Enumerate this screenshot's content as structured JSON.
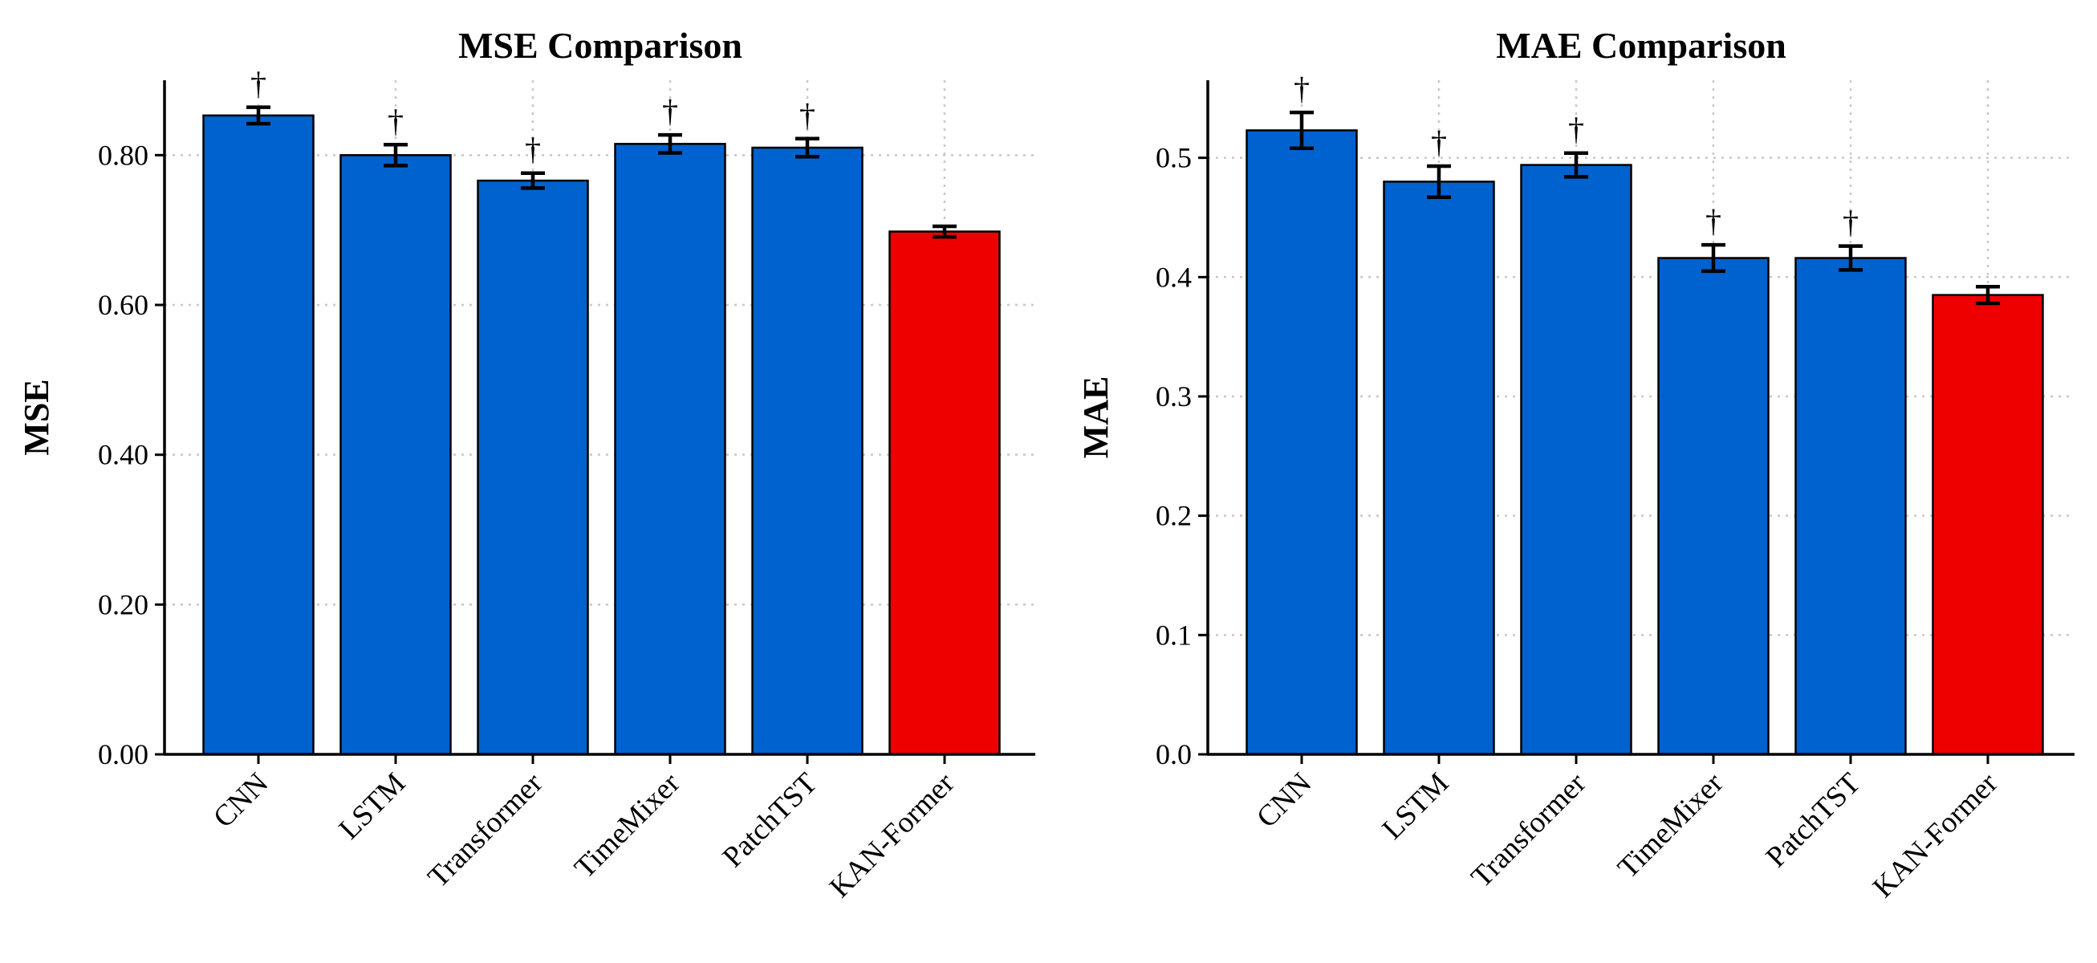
{
  "figure": {
    "background": "#ffffff"
  },
  "chart_data": [
    {
      "type": "bar",
      "title": "MSE Comparison",
      "xlabel": "",
      "ylabel": "MSE",
      "ylim": [
        0,
        0.9
      ],
      "yticks": [
        0.0,
        0.2,
        0.4,
        0.6,
        0.8
      ],
      "ytick_labels": [
        "0.00",
        "0.20",
        "0.40",
        "0.60",
        "0.80"
      ],
      "grid": true,
      "categories": [
        "CNN",
        "LSTM",
        "Transformer",
        "TimeMixer",
        "PatchTST",
        "KAN-Former"
      ],
      "values": [
        0.853,
        0.8,
        0.766,
        0.815,
        0.81,
        0.698
      ],
      "errors": [
        0.011,
        0.014,
        0.01,
        0.012,
        0.012,
        0.007
      ],
      "markers": [
        "†",
        "†",
        "†",
        "†",
        "†",
        ""
      ],
      "colors": [
        "#0062cf",
        "#0062cf",
        "#0062cf",
        "#0062cf",
        "#0062cf",
        "#ee0000"
      ]
    },
    {
      "type": "bar",
      "title": "MAE Comparison",
      "xlabel": "",
      "ylabel": "MAE",
      "ylim": [
        0,
        0.565
      ],
      "yticks": [
        0.0,
        0.1,
        0.2,
        0.3,
        0.4,
        0.5
      ],
      "ytick_labels": [
        "0.0",
        "0.1",
        "0.2",
        "0.3",
        "0.4",
        "0.5"
      ],
      "grid": true,
      "categories": [
        "CNN",
        "LSTM",
        "Transformer",
        "TimeMixer",
        "PatchTST",
        "KAN-Former"
      ],
      "values": [
        0.523,
        0.48,
        0.494,
        0.416,
        0.416,
        0.385
      ],
      "errors": [
        0.015,
        0.013,
        0.01,
        0.011,
        0.01,
        0.007
      ],
      "markers": [
        "†",
        "†",
        "†",
        "†",
        "†",
        ""
      ],
      "colors": [
        "#0062cf",
        "#0062cf",
        "#0062cf",
        "#0062cf",
        "#0062cf",
        "#ee0000"
      ]
    }
  ]
}
